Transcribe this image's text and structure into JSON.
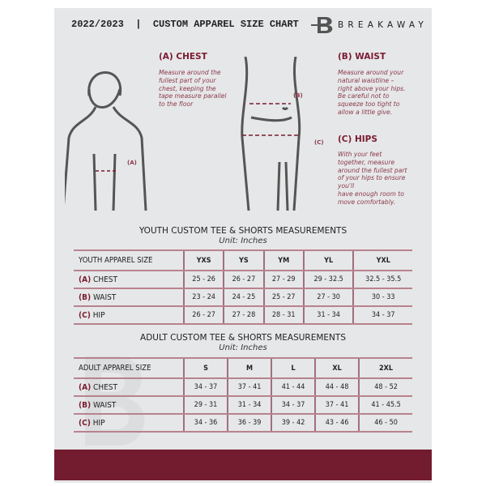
{
  "header": {
    "title": "2022/2023  |  CUSTOM APPAREL SIZE CHART",
    "brand": "BREAKAWAY"
  },
  "guide": {
    "chest": {
      "heading": "(A) CHEST",
      "marker": "(A)",
      "lines": [
        "Measure around the",
        "fullest part of your",
        "chest, keeping the",
        "tape measure parallel",
        "to the floor"
      ]
    },
    "waist": {
      "heading": "(B) WAIST",
      "marker": "(B)",
      "lines": [
        "Measure around your",
        "natural waistline –",
        "right above your hips.",
        "Be careful not to",
        "squeeze too tight to",
        "allow a little give."
      ]
    },
    "hips": {
      "heading": "(C) HIPS",
      "marker": "(C)",
      "lines": [
        "With your feet",
        "together, measure",
        "around the fullest part",
        "of your hips to ensure",
        "you'll",
        "have enough room to",
        "move comfortably."
      ]
    }
  },
  "youth": {
    "title": "YOUTH CUSTOM TEE & SHORTS MEASUREMENTS",
    "unit": "Unit: Inches",
    "header_label": "YOUTH APPAREL SIZE",
    "sizes": [
      "YXS",
      "YS",
      "YM",
      "YL",
      "YXL"
    ],
    "rows": [
      {
        "letter": "(A)",
        "name": "CHEST",
        "values": [
          "25 - 26",
          "26 - 27",
          "27 - 29",
          "29 - 32.5",
          "32.5 - 35.5"
        ]
      },
      {
        "letter": "(B)",
        "name": "WAIST",
        "values": [
          "23 - 24",
          "24 - 25",
          "25 - 27",
          "27 - 30",
          "30 - 33"
        ]
      },
      {
        "letter": "(C)",
        "name": "HIP",
        "values": [
          "26 - 27",
          "27 - 28",
          "28 - 31",
          "31 - 34",
          "34 - 37"
        ]
      }
    ]
  },
  "adult": {
    "title": "ADULT CUSTOM TEE & SHORTS MEASUREMENTS",
    "unit": "Unit: Inches",
    "header_label": "ADULT APPAREL SIZE",
    "sizes": [
      "S",
      "M",
      "L",
      "XL",
      "2XL"
    ],
    "rows": [
      {
        "letter": "(A)",
        "name": "CHEST",
        "values": [
          "34 - 37",
          "37 - 41",
          "41 - 44",
          "44 - 48",
          "48 - 52"
        ]
      },
      {
        "letter": "(B)",
        "name": "WAIST",
        "values": [
          "29 - 31",
          "31 - 34",
          "34 - 37",
          "37 - 41",
          "41 - 45.5"
        ]
      },
      {
        "letter": "(C)",
        "name": "HIP",
        "values": [
          "34 - 36",
          "36 - 39",
          "39 - 42",
          "43 - 46",
          "46 - 50"
        ]
      }
    ]
  },
  "colors": {
    "accent": "#731b2f",
    "panel": "#e6e7e8"
  }
}
